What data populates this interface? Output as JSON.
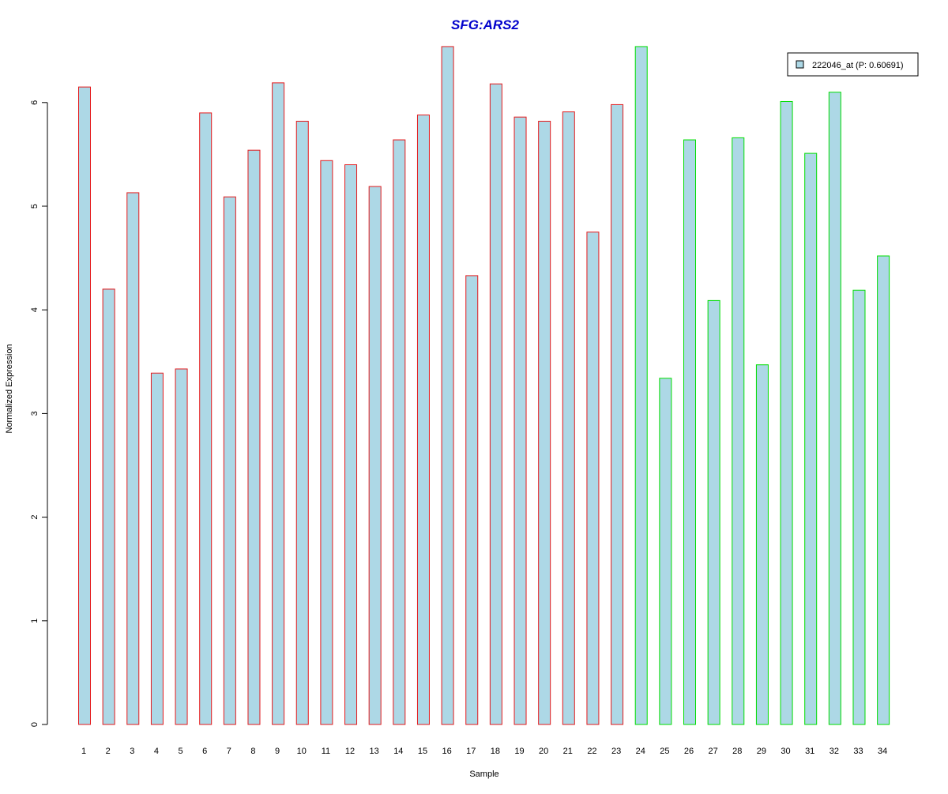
{
  "chart_data": {
    "type": "bar",
    "title": "SFG:ARS2",
    "xlabel": "Sample",
    "ylabel": "Normalized Expression",
    "categories": [
      "1",
      "2",
      "3",
      "4",
      "5",
      "6",
      "7",
      "8",
      "9",
      "10",
      "11",
      "12",
      "13",
      "14",
      "15",
      "16",
      "17",
      "18",
      "19",
      "20",
      "21",
      "22",
      "23",
      "24",
      "25",
      "26",
      "27",
      "28",
      "29",
      "30",
      "31",
      "32",
      "33",
      "34"
    ],
    "series": [
      {
        "name": "222046_at (P: 0.60691)",
        "values": [
          6.15,
          4.2,
          5.13,
          3.39,
          3.43,
          5.9,
          5.09,
          5.54,
          6.19,
          5.82,
          5.44,
          5.4,
          5.19,
          5.64,
          5.88,
          6.54,
          4.33,
          6.18,
          5.86,
          5.82,
          5.91,
          4.75,
          5.98,
          6.54,
          3.34,
          5.64,
          4.09,
          5.66,
          3.47,
          6.01,
          5.51,
          6.1,
          4.19,
          4.52
        ]
      }
    ],
    "groups": [
      {
        "samples": "1-23",
        "border_color": "#e41a1c"
      },
      {
        "samples": "24-34",
        "border_color": "#00dd00"
      }
    ],
    "bar_fill": "#add8e6",
    "title_color": "#0000cc",
    "yticks": [
      0,
      1,
      2,
      3,
      4,
      5,
      6
    ],
    "ylim": [
      0,
      6.54
    ],
    "grid": false,
    "legend_position": "top-right"
  }
}
